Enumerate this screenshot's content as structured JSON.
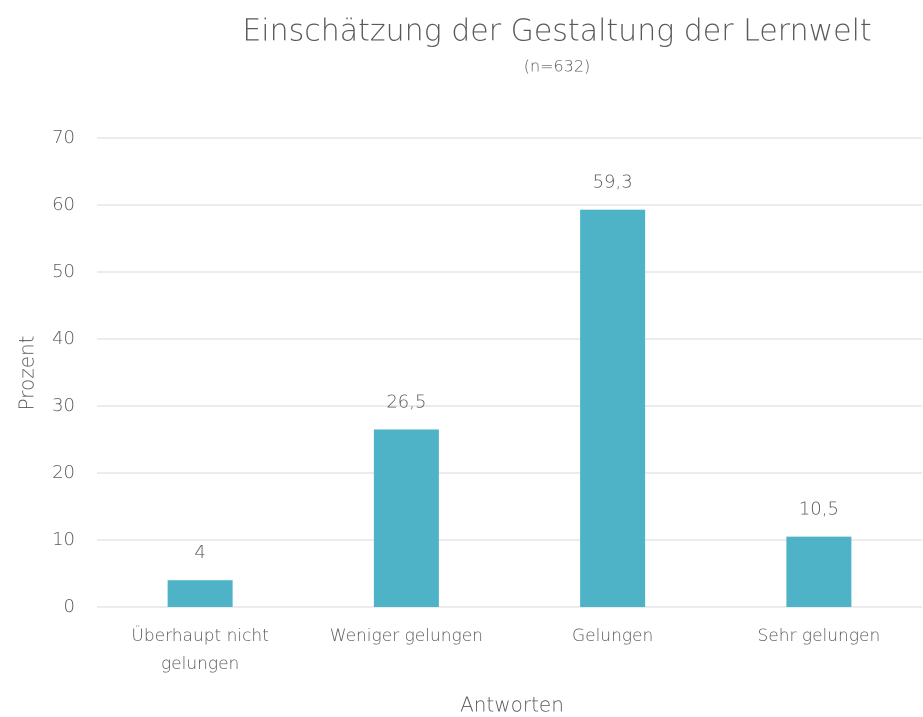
{
  "chart_data": {
    "type": "bar",
    "title": "Einschätzung der Gestaltung der Lernwelt",
    "subtitle": "(n=632)",
    "x_label": "Antworten",
    "y_label": "Prozent",
    "categories": [
      "Überhaupt nicht gelungen",
      "Weniger gelungen",
      "Gelungen",
      "Sehr gelungen"
    ],
    "values": [
      4,
      26.5,
      59.3,
      10.5
    ],
    "value_labels": [
      "4",
      "26,5",
      "59,3",
      "10,5"
    ],
    "color": "#4fb3c8",
    "ylim": [
      0,
      70
    ],
    "yticks": [
      0,
      10,
      20,
      30,
      40,
      50,
      60,
      70
    ],
    "grid": true
  }
}
